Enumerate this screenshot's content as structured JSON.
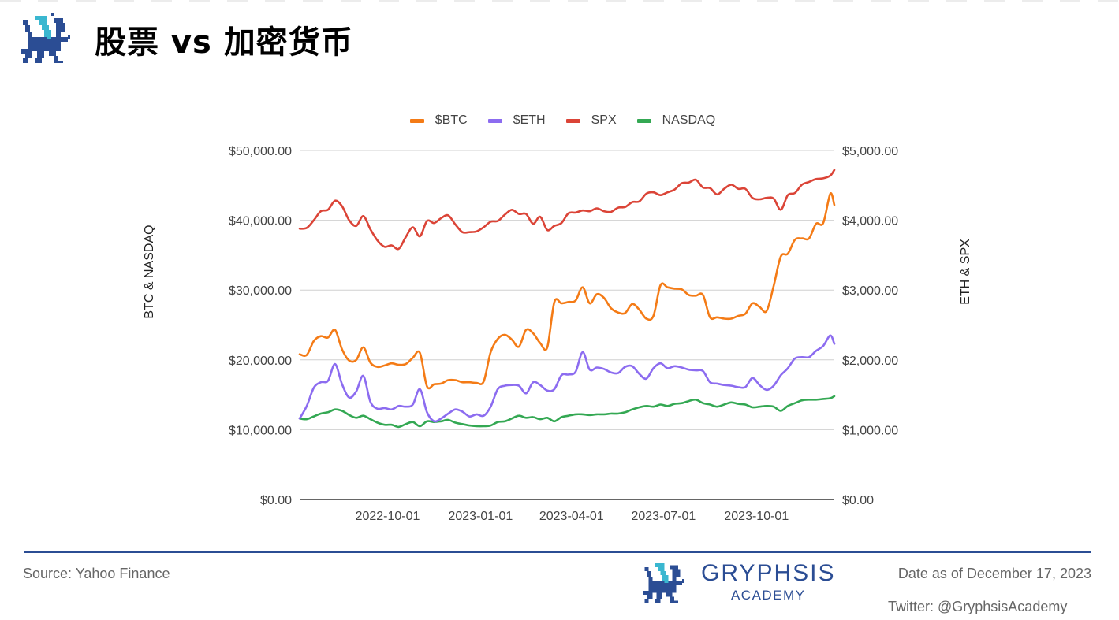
{
  "header": {
    "title": "股票 vs 加密货币",
    "logo": "gryphsis-griffin-logo"
  },
  "colors": {
    "btc": "#f47b16",
    "eth": "#8c6cf0",
    "spx": "#db4437",
    "nasdaq": "#34a853",
    "brand": "#2b4d94",
    "brand_accent": "#3ab7d0",
    "grid": "#d0d0d0"
  },
  "chart_data": {
    "type": "line",
    "title": "股票 vs 加密货币",
    "xlabel": "",
    "ylabel": "BTC & NASDAQ",
    "ylabel_right": "ETH & SPX",
    "ylim": [
      0,
      50000
    ],
    "ylim_right": [
      0,
      5000
    ],
    "yticks_left": [
      "$0.00",
      "$10,000.00",
      "$20,000.00",
      "$30,000.00",
      "$40,000.00",
      "$50,000.00"
    ],
    "yticks_right": [
      "$0.00",
      "$1,000.00",
      "$2,000.00",
      "$3,000.00",
      "$4,000.00",
      "$5,000.00"
    ],
    "xticks": [
      "2022-10-01",
      "2023-01-01",
      "2023-04-01",
      "2023-07-01",
      "2023-10-01"
    ],
    "x_range": [
      "2022-07-06",
      "2023-12-17"
    ],
    "grid": true,
    "legend_position": "top",
    "legend": [
      "$BTC",
      "$ETH",
      "SPX",
      "NASDAQ"
    ],
    "series": [
      {
        "name": "$BTC",
        "axis": "left",
        "color": "#f47b16",
        "x": [
          "2022-07-06",
          "2022-07-13",
          "2022-07-20",
          "2022-07-27",
          "2022-08-03",
          "2022-08-10",
          "2022-08-17",
          "2022-08-24",
          "2022-08-31",
          "2022-09-07",
          "2022-09-14",
          "2022-09-21",
          "2022-09-28",
          "2022-10-05",
          "2022-10-12",
          "2022-10-19",
          "2022-10-26",
          "2022-11-02",
          "2022-11-09",
          "2022-11-16",
          "2022-11-23",
          "2022-11-30",
          "2022-12-07",
          "2022-12-14",
          "2022-12-21",
          "2022-12-28",
          "2023-01-04",
          "2023-01-11",
          "2023-01-18",
          "2023-01-25",
          "2023-02-01",
          "2023-02-08",
          "2023-02-15",
          "2023-02-22",
          "2023-03-01",
          "2023-03-08",
          "2023-03-15",
          "2023-03-22",
          "2023-03-29",
          "2023-04-05",
          "2023-04-12",
          "2023-04-19",
          "2023-04-26",
          "2023-05-03",
          "2023-05-10",
          "2023-05-17",
          "2023-05-24",
          "2023-05-31",
          "2023-06-07",
          "2023-06-14",
          "2023-06-21",
          "2023-06-28",
          "2023-07-05",
          "2023-07-12",
          "2023-07-19",
          "2023-07-26",
          "2023-08-02",
          "2023-08-09",
          "2023-08-16",
          "2023-08-23",
          "2023-08-30",
          "2023-09-06",
          "2023-09-13",
          "2023-09-20",
          "2023-09-27",
          "2023-10-04",
          "2023-10-11",
          "2023-10-18",
          "2023-10-25",
          "2023-11-01",
          "2023-11-08",
          "2023-11-15",
          "2023-11-22",
          "2023-11-29",
          "2023-12-06",
          "2023-12-13",
          "2023-12-17"
        ],
        "values": [
          20800,
          20700,
          22700,
          23400,
          23200,
          24300,
          21500,
          19900,
          20000,
          21800,
          19600,
          19000,
          19200,
          19500,
          19300,
          19400,
          20300,
          21000,
          16200,
          16500,
          16600,
          17100,
          17100,
          16800,
          16800,
          16700,
          16900,
          21100,
          23000,
          23600,
          22900,
          21900,
          24300,
          23800,
          22400,
          21800,
          28300,
          28100,
          28300,
          28500,
          30400,
          28100,
          29400,
          28900,
          27400,
          26800,
          26700,
          28000,
          27200,
          25900,
          26300,
          30700,
          30400,
          30200,
          30100,
          29300,
          29200,
          29300,
          26100,
          26100,
          25900,
          25900,
          26300,
          26600,
          28100,
          27600,
          27000,
          30600,
          34800,
          35200,
          37200,
          37400,
          37400,
          39500,
          39600,
          43800,
          42200
        ]
      },
      {
        "name": "$ETH",
        "axis": "right",
        "color": "#8c6cf0",
        "x_ref": "$BTC",
        "values": [
          1160,
          1340,
          1600,
          1680,
          1700,
          1940,
          1650,
          1460,
          1550,
          1770,
          1400,
          1300,
          1310,
          1290,
          1340,
          1330,
          1360,
          1580,
          1250,
          1120,
          1160,
          1230,
          1290,
          1260,
          1190,
          1220,
          1200,
          1330,
          1580,
          1630,
          1640,
          1630,
          1520,
          1680,
          1640,
          1560,
          1580,
          1780,
          1790,
          1830,
          2110,
          1860,
          1890,
          1870,
          1820,
          1810,
          1900,
          1910,
          1800,
          1730,
          1880,
          1950,
          1880,
          1910,
          1890,
          1860,
          1850,
          1840,
          1680,
          1660,
          1640,
          1630,
          1610,
          1610,
          1740,
          1640,
          1570,
          1630,
          1780,
          1880,
          2020,
          2040,
          2040,
          2130,
          2200,
          2350,
          2230
        ]
      },
      {
        "name": "SPX",
        "axis": "right",
        "color": "#db4437",
        "x_ref": "$BTC",
        "values": [
          3880,
          3890,
          4000,
          4130,
          4150,
          4280,
          4200,
          4000,
          3920,
          4060,
          3870,
          3710,
          3620,
          3640,
          3590,
          3760,
          3900,
          3770,
          3990,
          3960,
          4030,
          4070,
          3940,
          3830,
          3830,
          3840,
          3900,
          3980,
          3990,
          4080,
          4150,
          4090,
          4090,
          3950,
          4050,
          3860,
          3920,
          3960,
          4100,
          4110,
          4140,
          4130,
          4170,
          4130,
          4120,
          4180,
          4190,
          4260,
          4270,
          4380,
          4400,
          4360,
          4400,
          4440,
          4530,
          4540,
          4580,
          4470,
          4460,
          4370,
          4450,
          4510,
          4450,
          4450,
          4320,
          4300,
          4320,
          4310,
          4150,
          4360,
          4390,
          4510,
          4550,
          4590,
          4600,
          4640,
          4720
        ]
      },
      {
        "name": "NASDAQ",
        "axis": "left",
        "color": "#34a853",
        "x_ref": "$BTC",
        "values": [
          11600,
          11500,
          11900,
          12300,
          12500,
          12900,
          12700,
          12100,
          11700,
          12000,
          11500,
          11000,
          10700,
          10700,
          10400,
          10800,
          11100,
          10500,
          11200,
          11100,
          11200,
          11400,
          11000,
          10800,
          10600,
          10500,
          10500,
          10600,
          11100,
          11200,
          11600,
          12000,
          11700,
          11800,
          11500,
          11700,
          11200,
          11800,
          12000,
          12200,
          12200,
          12100,
          12200,
          12200,
          12300,
          12300,
          12500,
          12900,
          13200,
          13400,
          13300,
          13600,
          13400,
          13700,
          13800,
          14100,
          14300,
          13800,
          13600,
          13300,
          13600,
          13900,
          13700,
          13600,
          13200,
          13300,
          13400,
          13300,
          12700,
          13400,
          13800,
          14200,
          14300,
          14300,
          14400,
          14500,
          14800
        ]
      }
    ]
  },
  "footer": {
    "source": "Source: Yahoo Finance",
    "brand_name": "GRYPHSIS",
    "brand_sub": "ACADEMY",
    "date_note": "Date as of December 17, 2023",
    "twitter": "Twitter: @GryphsisAcademy"
  }
}
